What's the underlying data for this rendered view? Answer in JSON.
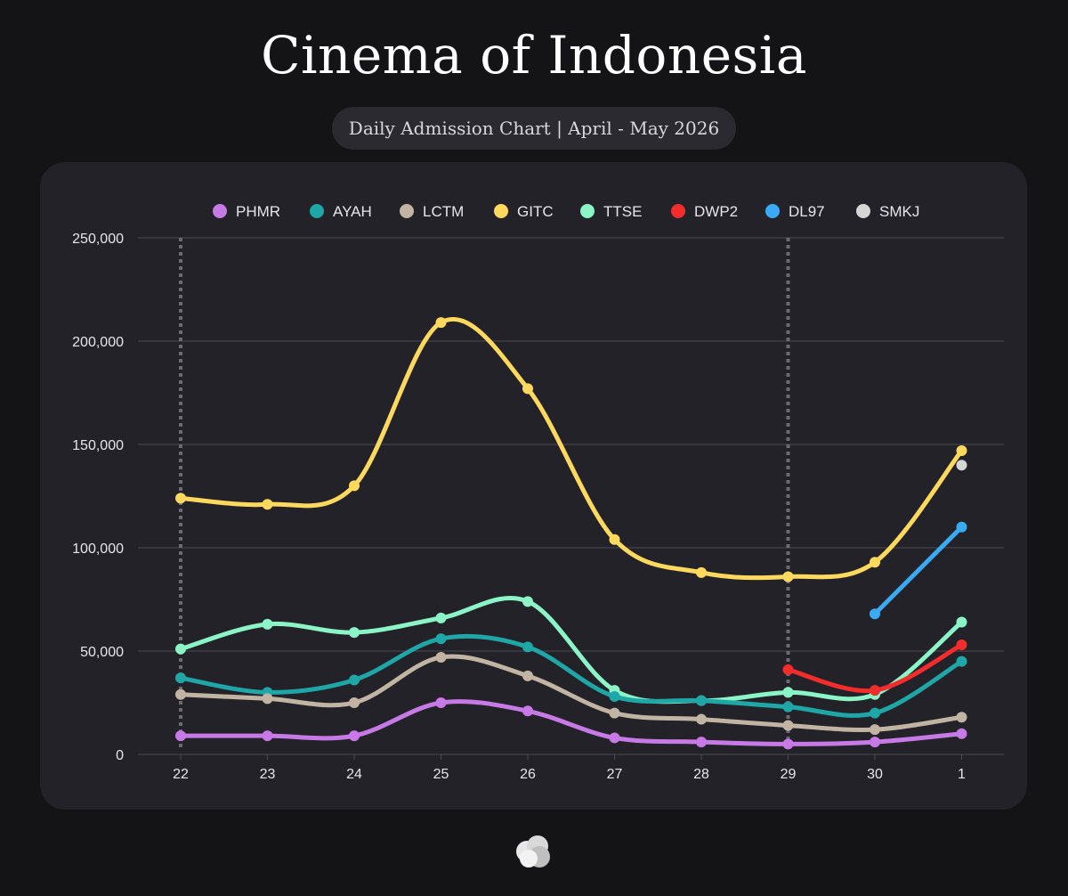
{
  "header": {
    "title": "Cinema of Indonesia",
    "subtitle": "Daily Admission Chart | April - May 2026"
  },
  "chart_data": {
    "type": "line",
    "title": "Cinema of Indonesia",
    "subtitle": "Daily Admission Chart | April - May 2026",
    "xlabel": "",
    "ylabel": "",
    "x": [
      "22",
      "23",
      "24",
      "25",
      "26",
      "27",
      "28",
      "29",
      "30",
      "1"
    ],
    "ylim": [
      0,
      250000
    ],
    "yticks": [
      0,
      50000,
      100000,
      150000,
      200000,
      250000
    ],
    "ytick_labels": [
      "0",
      "50,000",
      "100,000",
      "150,000",
      "200,000",
      "250,000"
    ],
    "grid": "horizontal",
    "legend_position": "top",
    "marked_dates": [
      "22",
      "29"
    ],
    "series": [
      {
        "name": "GITC",
        "color": "#ffd95e",
        "values": [
          124000,
          121000,
          130000,
          209000,
          177000,
          104000,
          88000,
          86000,
          93000,
          147000
        ]
      },
      {
        "name": "TTSE",
        "color": "#8cf5c8",
        "values": [
          51000,
          63000,
          59000,
          66000,
          74000,
          31000,
          26000,
          30000,
          29000,
          64000
        ]
      },
      {
        "name": "AYAH",
        "color": "#1fa6a6",
        "values": [
          37000,
          30000,
          36000,
          56000,
          52000,
          28000,
          26000,
          23000,
          20000,
          45000
        ]
      },
      {
        "name": "LCTM",
        "color": "#c2b4a3",
        "values": [
          29000,
          27000,
          25000,
          47000,
          38000,
          20000,
          17000,
          14000,
          12000,
          18000
        ]
      },
      {
        "name": "PHMR",
        "color": "#c77ae6",
        "values": [
          9000,
          9000,
          9000,
          25000,
          21000,
          8000,
          6000,
          5000,
          6000,
          10000
        ]
      },
      {
        "name": "DWP2",
        "color": "#f52c2c",
        "values": [
          null,
          null,
          null,
          null,
          null,
          null,
          null,
          41000,
          31000,
          53000
        ]
      },
      {
        "name": "DL97",
        "color": "#3aaaf5",
        "values": [
          null,
          null,
          null,
          null,
          null,
          null,
          null,
          null,
          68000,
          110000
        ]
      },
      {
        "name": "SMKJ",
        "color": "#d6d6d6",
        "values": [
          null,
          null,
          null,
          null,
          null,
          null,
          null,
          null,
          null,
          140000
        ]
      }
    ],
    "legend_order": [
      "PHMR",
      "AYAH",
      "LCTM",
      "GITC",
      "TTSE",
      "DWP2",
      "DL97",
      "SMKJ"
    ]
  },
  "colors": {
    "background": "#141417",
    "card": "#222228",
    "pill": "#2a2a30",
    "grid": "#4a4a50",
    "axis_text": "#e6e6ea"
  },
  "footer": {
    "logo_icon": "cloud-logo-icon"
  }
}
